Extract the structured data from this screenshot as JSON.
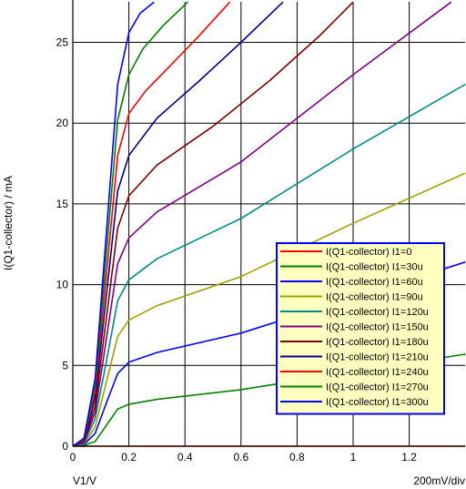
{
  "chart_data": {
    "type": "line",
    "xlabel": "V1/V",
    "ylabel": "I(Q1-collector) / mA",
    "x_scale_note": "200mV/div",
    "xlim": [
      0,
      1.4
    ],
    "ylim": [
      0,
      27.5
    ],
    "x_ticks": [
      "0",
      "0.2",
      "0.4",
      "0.6",
      "0.8",
      "1",
      "1.2"
    ],
    "y_ticks": [
      "0",
      "5",
      "10",
      "15",
      "20",
      "25"
    ],
    "grid": true,
    "legend_position": "bottom-right",
    "series": [
      {
        "name": "I(Q1-collector) I1=0",
        "color": "#ff0000",
        "x": [
          0,
          1.4
        ],
        "y": [
          0,
          0
        ]
      },
      {
        "name": "I(Q1-collector) I1=30u",
        "color": "#008000",
        "x": [
          0,
          0.04,
          0.08,
          0.12,
          0.16,
          0.2,
          0.3,
          0.6,
          1.0,
          1.4
        ],
        "y": [
          0,
          0.05,
          0.3,
          1.3,
          2.3,
          2.6,
          2.9,
          3.5,
          4.6,
          5.7
        ]
      },
      {
        "name": "I(Q1-collector) I1=60u",
        "color": "#0000ff",
        "x": [
          0,
          0.04,
          0.08,
          0.12,
          0.16,
          0.2,
          0.3,
          0.6,
          1.0,
          1.4
        ],
        "y": [
          0,
          0.1,
          0.8,
          2.7,
          4.5,
          5.2,
          5.8,
          7.0,
          9.2,
          11.4
        ]
      },
      {
        "name": "I(Q1-collector) I1=90u",
        "color": "#a0a000",
        "x": [
          0,
          0.04,
          0.08,
          0.12,
          0.16,
          0.2,
          0.3,
          0.6,
          1.0,
          1.4
        ],
        "y": [
          0,
          0.15,
          1.2,
          4.0,
          6.8,
          7.8,
          8.7,
          10.5,
          13.8,
          16.9
        ]
      },
      {
        "name": "I(Q1-collector) I1=120u",
        "color": "#008b8b",
        "x": [
          0,
          0.04,
          0.08,
          0.12,
          0.16,
          0.2,
          0.3,
          0.6,
          1.0,
          1.4
        ],
        "y": [
          0,
          0.2,
          1.7,
          5.3,
          9.0,
          10.3,
          11.6,
          14.1,
          18.4,
          22.4
        ]
      },
      {
        "name": "I(Q1-collector) I1=150u",
        "color": "#800080",
        "x": [
          0,
          0.04,
          0.08,
          0.12,
          0.16,
          0.2,
          0.3,
          0.6,
          1.0,
          1.35
        ],
        "y": [
          0,
          0.25,
          2.1,
          6.7,
          11.3,
          12.9,
          14.5,
          17.6,
          23.0,
          27.5
        ]
      },
      {
        "name": "I(Q1-collector) I1=180u",
        "color": "#800000",
        "x": [
          0,
          0.04,
          0.08,
          0.12,
          0.16,
          0.2,
          0.3,
          0.5,
          0.7,
          0.88,
          1.0
        ],
        "y": [
          0,
          0.3,
          2.5,
          8.0,
          13.5,
          15.5,
          17.4,
          19.8,
          22.6,
          25.4,
          27.5
        ]
      },
      {
        "name": "I(Q1-collector) I1=210u",
        "color": "#00008b",
        "x": [
          0,
          0.04,
          0.08,
          0.12,
          0.16,
          0.2,
          0.3,
          0.45,
          0.6,
          0.75
        ],
        "y": [
          0,
          0.35,
          3.0,
          9.4,
          15.8,
          18.0,
          20.3,
          22.6,
          25.0,
          27.5
        ]
      },
      {
        "name": "I(Q1-collector) I1=240u",
        "color": "#ff0000",
        "x": [
          0,
          0.04,
          0.08,
          0.12,
          0.16,
          0.2,
          0.26,
          0.35,
          0.45,
          0.56
        ],
        "y": [
          0,
          0.4,
          3.4,
          10.7,
          18.0,
          20.6,
          22.0,
          23.6,
          25.4,
          27.5
        ]
      },
      {
        "name": "I(Q1-collector) I1=270u",
        "color": "#008000",
        "x": [
          0,
          0.04,
          0.08,
          0.12,
          0.16,
          0.2,
          0.25,
          0.32,
          0.41
        ],
        "y": [
          0,
          0.45,
          3.8,
          12.0,
          20.2,
          23.0,
          24.6,
          26.0,
          27.5
        ]
      },
      {
        "name": "I(Q1-collector) I1=300u",
        "color": "#0000ff",
        "x": [
          0,
          0.04,
          0.08,
          0.12,
          0.16,
          0.2,
          0.24,
          0.29
        ],
        "y": [
          0,
          0.5,
          4.2,
          13.3,
          22.4,
          25.6,
          26.8,
          27.5
        ]
      }
    ]
  }
}
